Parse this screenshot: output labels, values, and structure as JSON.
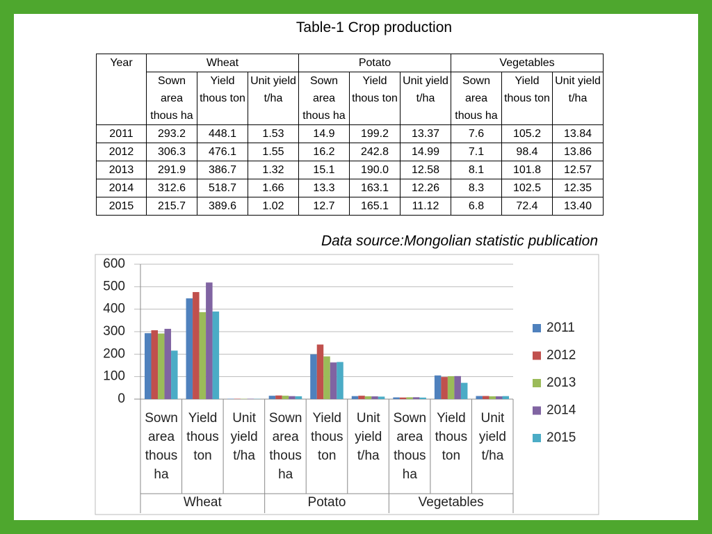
{
  "title": "Table-1 Crop production",
  "table": {
    "year_header": "Year",
    "groups": [
      "Wheat",
      "Potato",
      "Vegetables"
    ],
    "subheaders": [
      "Sown area thous ha",
      "Yield thous ton",
      "Unit yield t/ha",
      "Sown area thous ha",
      "Yield thous ton",
      "Unit yield t/ha",
      "Sown area thous ha",
      "Yield thous ton",
      "Unit yield t/ha"
    ],
    "rows": [
      [
        "2011",
        "293.2",
        "448.1",
        "1.53",
        "14.9",
        "199.2",
        "13.37",
        "7.6",
        "105.2",
        "13.84"
      ],
      [
        "2012",
        "306.3",
        "476.1",
        "1.55",
        "16.2",
        "242.8",
        "14.99",
        "7.1",
        "98.4",
        "13.86"
      ],
      [
        "2013",
        "291.9",
        "386.7",
        "1.32",
        "15.1",
        "190.0",
        "12.58",
        "8.1",
        "101.8",
        "12.57"
      ],
      [
        "2014",
        "312.6",
        "518.7",
        "1.66",
        "13.3",
        "163.1",
        "12.26",
        "8.3",
        "102.5",
        "12.35"
      ],
      [
        "2015",
        "215.7",
        "389.6",
        "1.02",
        "12.7",
        "165.1",
        "11.12",
        "6.8",
        "72.4",
        "13.40"
      ]
    ]
  },
  "source": "Data source:Mongolian statistic publication",
  "chart_data": {
    "type": "bar",
    "categories": [
      "Sown area thous ha",
      "Yield thous ton",
      "Unit yield t/ha",
      "Sown area thous ha",
      "Yield thous ton",
      "Unit yield t/ha",
      "Sown area thous ha",
      "Yield thous ton",
      "Unit yield t/ha"
    ],
    "groups": [
      "Wheat",
      "Potato",
      "Vegetables"
    ],
    "series": [
      {
        "name": "2011",
        "color": "#4f81bd",
        "values": [
          293.2,
          448.1,
          1.53,
          14.9,
          199.2,
          13.37,
          7.6,
          105.2,
          13.84
        ]
      },
      {
        "name": "2012",
        "color": "#c0504d",
        "values": [
          306.3,
          476.1,
          1.55,
          16.2,
          242.8,
          14.99,
          7.1,
          98.4,
          13.86
        ]
      },
      {
        "name": "2013",
        "color": "#9bbb59",
        "values": [
          291.9,
          386.7,
          1.32,
          15.1,
          190.0,
          12.58,
          8.1,
          101.8,
          12.57
        ]
      },
      {
        "name": "2014",
        "color": "#8064a2",
        "values": [
          312.6,
          518.7,
          1.66,
          13.3,
          163.1,
          12.26,
          8.3,
          102.5,
          12.35
        ]
      },
      {
        "name": "2015",
        "color": "#4bacc6",
        "values": [
          215.7,
          389.6,
          1.02,
          12.7,
          165.1,
          11.12,
          6.8,
          72.4,
          13.4
        ]
      }
    ],
    "ylim": [
      0,
      600
    ],
    "yticks": [
      0,
      100,
      200,
      300,
      400,
      500,
      600
    ],
    "grid": true,
    "legend": "right"
  }
}
